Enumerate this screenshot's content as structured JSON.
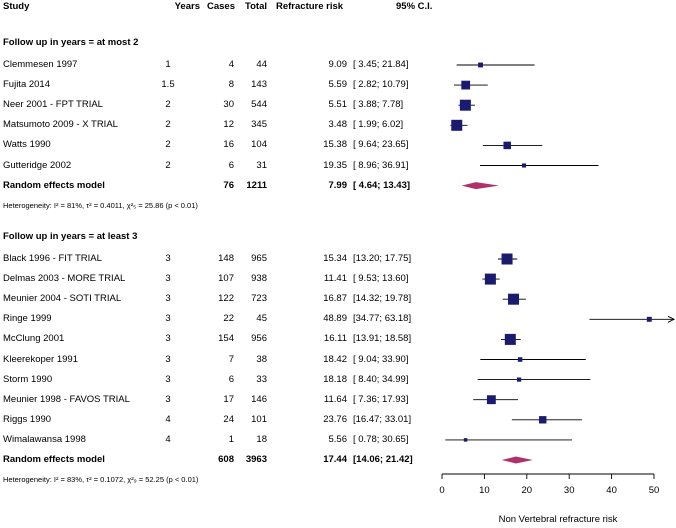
{
  "headers": {
    "study": "Study",
    "years": "Years",
    "cases": "Cases",
    "total": "Total",
    "risk": "Refracture risk",
    "ci": "95% C.I."
  },
  "groups": [
    {
      "title": "Follow up in years = at most 2",
      "studies": [
        {
          "study": "Clemmesen 1997",
          "years": "1",
          "cases": "4",
          "total": "44",
          "risk": "9.09",
          "ci": "[ 3.45; 21.84]"
        },
        {
          "study": "Fujita 2014",
          "years": "1.5",
          "cases": "8",
          "total": "143",
          "risk": "5.59",
          "ci": "[ 2.82; 10.79]"
        },
        {
          "study": "Neer 2001 - FPT TRIAL",
          "years": "2",
          "cases": "30",
          "total": "544",
          "risk": "5.51",
          "ci": "[ 3.88; 7.78]"
        },
        {
          "study": "Matsumoto 2009 - X TRIAL",
          "years": "2",
          "cases": "12",
          "total": "345",
          "risk": "3.48",
          "ci": "[ 1.99; 6.02]"
        },
        {
          "study": "Watts 1990",
          "years": "2",
          "cases": "16",
          "total": "104",
          "risk": "15.38",
          "ci": "[ 9.64; 23.65]"
        },
        {
          "study": "Gutteridge 2002",
          "years": "2",
          "cases": "6",
          "total": "31",
          "risk": "19.35",
          "ci": "[ 8.96; 36.91]"
        }
      ],
      "model": {
        "label": "Random effects model",
        "cases": "76",
        "total": "1211",
        "risk": "7.99",
        "ci": "[ 4.64; 13.43]"
      },
      "heterogeneity": "Heterogeneity: I² = 81%, τ² = 0.4011, χ²₅ = 25.86 (p < 0.01)"
    },
    {
      "title": "Follow up in years = at least 3",
      "studies": [
        {
          "study": "Black 1996 - FIT TRIAL",
          "years": "3",
          "cases": "148",
          "total": "965",
          "risk": "15.34",
          "ci": "[13.20; 17.75]"
        },
        {
          "study": "Delmas 2003 - MORE TRIAL",
          "years": "3",
          "cases": "107",
          "total": "938",
          "risk": "11.41",
          "ci": "[ 9.53; 13.60]"
        },
        {
          "study": "Meunier 2004 - SOTI TRIAL",
          "years": "3",
          "cases": "122",
          "total": "723",
          "risk": "16.87",
          "ci": "[14.32; 19.78]"
        },
        {
          "study": "Ringe 1999",
          "years": "3",
          "cases": "22",
          "total": "45",
          "risk": "48.89",
          "ci": "[34.77; 63.18]"
        },
        {
          "study": "McClung 2001",
          "years": "3",
          "cases": "154",
          "total": "956",
          "risk": "16.11",
          "ci": "[13.91; 18.58]"
        },
        {
          "study": "Kleerekoper 1991",
          "years": "3",
          "cases": "7",
          "total": "38",
          "risk": "18.42",
          "ci": "[ 9.04; 33.90]"
        },
        {
          "study": "Storm 1990",
          "years": "3",
          "cases": "6",
          "total": "33",
          "risk": "18.18",
          "ci": "[ 8.40; 34.99]"
        },
        {
          "study": "Meunier 1998 - FAVOS TRIAL",
          "years": "3",
          "cases": "17",
          "total": "146",
          "risk": "11.64",
          "ci": "[ 7.36; 17.93]"
        },
        {
          "study": "Riggs 1990",
          "years": "4",
          "cases": "24",
          "total": "101",
          "risk": "23.76",
          "ci": "[16.47; 33.01]"
        },
        {
          "study": "Wimalawansa 1998",
          "years": "4",
          "cases": "1",
          "total": "18",
          "risk": "5.56",
          "ci": "[ 0.78; 30.65]"
        }
      ],
      "model": {
        "label": "Random effects model",
        "cases": "608",
        "total": "3963",
        "risk": "17.44",
        "ci": "[14.06; 21.42]"
      },
      "heterogeneity": "Heterogeneity: I² = 83%, τ² = 0.1072, χ²₉ = 52.25 (p < 0.01)"
    }
  ],
  "chart_data": {
    "type": "forest",
    "xlabel": "Non Vertebral refracture risk",
    "xlim": [
      0,
      50
    ],
    "xticks": [
      0,
      10,
      20,
      30,
      40,
      50
    ],
    "colors": {
      "square": "#1a1a6e",
      "diamond": "#b0306a",
      "line": "#000000"
    },
    "series": [
      {
        "group": "Follow up in years = at most 2",
        "points": [
          {
            "y": 9.09,
            "lo": 3.45,
            "hi": 21.84,
            "w": 44
          },
          {
            "y": 5.59,
            "lo": 2.82,
            "hi": 10.79,
            "w": 143
          },
          {
            "y": 5.51,
            "lo": 3.88,
            "hi": 7.78,
            "w": 544
          },
          {
            "y": 3.48,
            "lo": 1.99,
            "hi": 6.02,
            "w": 345
          },
          {
            "y": 15.38,
            "lo": 9.64,
            "hi": 23.65,
            "w": 104
          },
          {
            "y": 19.35,
            "lo": 8.96,
            "hi": 36.91,
            "w": 31
          }
        ],
        "pooled": {
          "y": 7.99,
          "lo": 4.64,
          "hi": 13.43
        }
      },
      {
        "group": "Follow up in years = at least 3",
        "points": [
          {
            "y": 15.34,
            "lo": 13.2,
            "hi": 17.75,
            "w": 965
          },
          {
            "y": 11.41,
            "lo": 9.53,
            "hi": 13.6,
            "w": 938
          },
          {
            "y": 16.87,
            "lo": 14.32,
            "hi": 19.78,
            "w": 723
          },
          {
            "y": 48.89,
            "lo": 34.77,
            "hi": 63.18,
            "w": 45
          },
          {
            "y": 16.11,
            "lo": 13.91,
            "hi": 18.58,
            "w": 956
          },
          {
            "y": 18.42,
            "lo": 9.04,
            "hi": 33.9,
            "w": 38
          },
          {
            "y": 18.18,
            "lo": 8.4,
            "hi": 34.99,
            "w": 33
          },
          {
            "y": 11.64,
            "lo": 7.36,
            "hi": 17.93,
            "w": 146
          },
          {
            "y": 23.76,
            "lo": 16.47,
            "hi": 33.01,
            "w": 101
          },
          {
            "y": 5.56,
            "lo": 0.78,
            "hi": 30.65,
            "w": 18
          }
        ],
        "pooled": {
          "y": 17.44,
          "lo": 14.06,
          "hi": 21.42
        }
      }
    ]
  }
}
